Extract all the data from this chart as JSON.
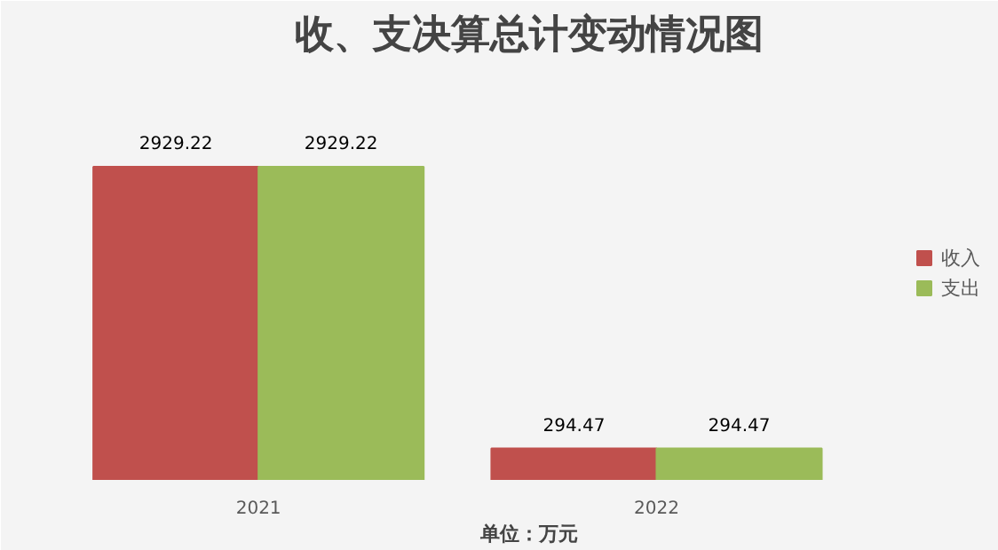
{
  "chart_data": {
    "type": "bar",
    "title": "收、支决算总计变动情况图",
    "xlabel": "单位：万元",
    "categories": [
      "2021",
      "2022"
    ],
    "series": [
      {
        "name": "收入",
        "color": "#c0504d",
        "values": [
          2929.22,
          294.47
        ]
      },
      {
        "name": "支出",
        "color": "#9bbb59",
        "values": [
          2929.22,
          294.47
        ]
      }
    ],
    "data_labels": true,
    "legend": "right",
    "grid": false
  }
}
